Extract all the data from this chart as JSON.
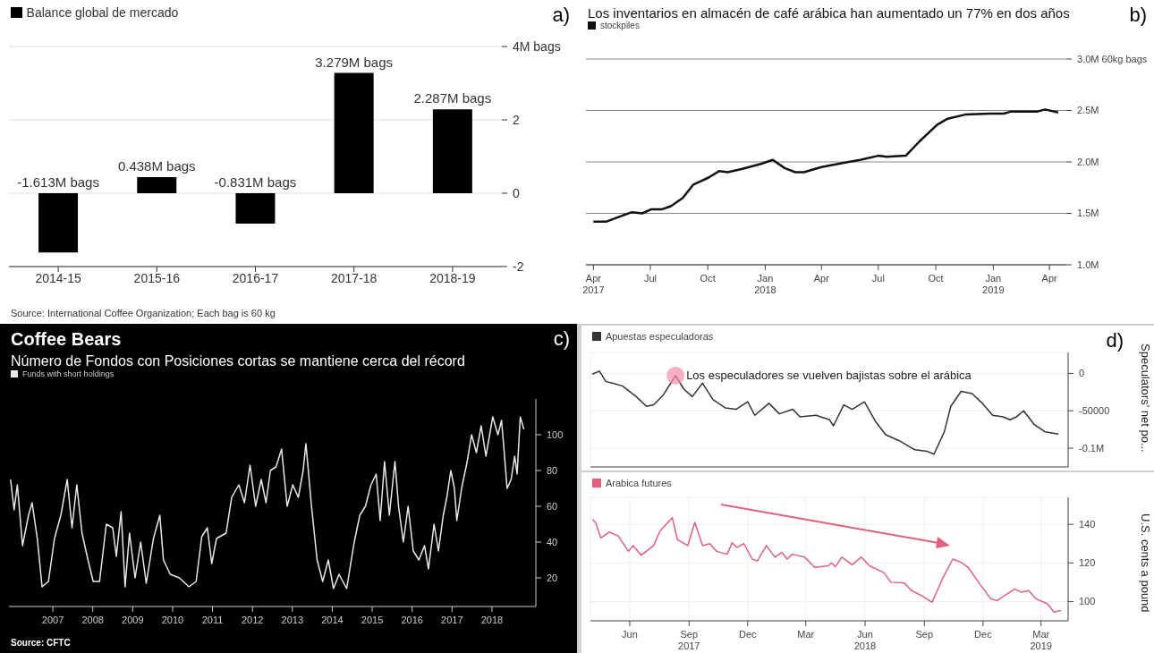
{
  "chart_data": [
    {
      "type": "bar",
      "categories": [
        "2014-15",
        "2015-16",
        "2016-17",
        "2017-18",
        "2018-19"
      ],
      "series": [
        {
          "name": "Balance global de mercado",
          "color": "#000000",
          "values": [
            -1.613,
            0.438,
            -0.831,
            3.279,
            2.287
          ],
          "value_labels": [
            "-1.613M bags",
            "0.438M bags",
            "-0.831M bags",
            "3.279M bags",
            "2.287M bags"
          ]
        }
      ],
      "ylim": [
        -2,
        4
      ],
      "yticks": [
        -2,
        0,
        2,
        {
          "value": 4,
          "label": "4M bags"
        }
      ],
      "grid": "y",
      "legend": "top left",
      "annotations": [
        "a)",
        "Source: International Coffee Organization; Each bag is 60 kg"
      ]
    },
    {
      "type": "line",
      "title": "Los inventarios en almacén de café arábica han aumentado un 77% en dos años",
      "series": [
        {
          "name": "stockpiles",
          "color": "#111111",
          "x": [
            "2017-04-01",
            "2017-04-22",
            "2017-05-18",
            "2017-06-01",
            "2017-06-18",
            "2017-07-03",
            "2017-07-20",
            "2017-08-03",
            "2017-08-22",
            "2017-09-08",
            "2017-09-19",
            "2017-10-03",
            "2017-10-19",
            "2017-11-02",
            "2017-11-24",
            "2017-12-25",
            "2018-01-13",
            "2018-02-01",
            "2018-02-18",
            "2018-03-04",
            "2018-04-01",
            "2018-05-05",
            "2018-06-02",
            "2018-07-01",
            "2018-07-14",
            "2018-08-14",
            "2018-09-05",
            "2018-10-03",
            "2018-10-20",
            "2018-11-17",
            "2018-12-27",
            "2019-01-18",
            "2019-01-30",
            "2019-03-13",
            "2019-03-25",
            "2019-04-15"
          ],
          "values": [
            1.42,
            1.42,
            1.48,
            1.51,
            1.5,
            1.54,
            1.54,
            1.57,
            1.65,
            1.78,
            1.81,
            1.85,
            1.91,
            1.9,
            1.93,
            1.98,
            2.02,
            1.94,
            1.9,
            1.9,
            1.95,
            1.99,
            2.02,
            2.06,
            2.05,
            2.06,
            2.2,
            2.36,
            2.42,
            2.46,
            2.47,
            2.47,
            2.49,
            2.49,
            2.51,
            2.48
          ]
        }
      ],
      "xlim": [
        "2017-03-20",
        "2019-04-28"
      ],
      "xticks": [
        {
          "value": "2017-04-01",
          "label": "Apr 2017"
        },
        {
          "value": "2017-07-01",
          "label": "Jul"
        },
        {
          "value": "2017-10-01",
          "label": "Oct"
        },
        {
          "value": "2018-01-01",
          "label": "Jan 2018"
        },
        {
          "value": "2018-04-01",
          "label": "Apr"
        },
        {
          "value": "2018-07-01",
          "label": "Jul"
        },
        {
          "value": "2018-10-01",
          "label": "Oct"
        },
        {
          "value": "2019-01-01",
          "label": "Jan 2019"
        },
        {
          "value": "2019-04-01",
          "label": "Apr"
        }
      ],
      "ylim": [
        1.0,
        3.0
      ],
      "yticks": [
        {
          "value": 1.0,
          "label": "1.0M"
        },
        {
          "value": 1.5,
          "label": "1.5M"
        },
        {
          "value": 2.0,
          "label": "2.0M"
        },
        {
          "value": 2.5,
          "label": "2.5M"
        },
        {
          "value": 3.0,
          "label": "3.0M 60kg bags"
        }
      ],
      "grid": "y",
      "legend": "top left",
      "annotations": [
        "b)"
      ]
    },
    {
      "type": "line",
      "title": "Coffee Bears",
      "subtitle": "Número de Fondos con Posiciones cortas se mantiene cerca del récord",
      "series": [
        {
          "name": "Funds with short holdings",
          "color": "#e8e8e8",
          "x": [
            2006.44,
            2006.53,
            2006.61,
            2006.74,
            2006.89,
            2006.98,
            2007.11,
            2007.23,
            2007.39,
            2007.54,
            2007.7,
            2007.86,
            2007.98,
            2008.1,
            2008.23,
            2008.38,
            2008.51,
            2008.67,
            2008.84,
            2009.0,
            2009.09,
            2009.21,
            2009.31,
            2009.42,
            2009.56,
            2009.7,
            2009.84,
            2010.02,
            2010.18,
            2010.27,
            2010.44,
            2010.67,
            2010.91,
            2011.09,
            2011.23,
            2011.37,
            2011.48,
            2011.6,
            2011.84,
            2011.98,
            2012.16,
            2012.3,
            2012.44,
            2012.58,
            2012.72,
            2012.84,
            2012.95,
            2013.09,
            2013.23,
            2013.37,
            2013.51,
            2013.65,
            2013.77,
            2013.84,
            2013.98,
            2014.12,
            2014.26,
            2014.4,
            2014.53,
            2014.67,
            2014.86,
            2015.05,
            2015.19,
            2015.33,
            2015.47,
            2015.6,
            2015.7,
            2015.81,
            2015.93,
            2016.07,
            2016.16,
            2016.28,
            2016.4,
            2016.53,
            2016.67,
            2016.81,
            2016.91,
            2017.05,
            2017.16,
            2017.28,
            2017.37,
            2017.47,
            2017.56,
            2017.62,
            2017.74,
            2017.88,
            2017.99,
            2018.11,
            2018.23,
            2018.35,
            2018.52,
            2018.65,
            2018.74,
            2018.79,
            2018.88,
            2018.98,
            2019.07,
            2019.13,
            2019.21,
            2019.3
          ],
          "values": [
            75,
            58,
            72,
            38,
            55,
            62,
            42,
            15,
            18,
            42,
            55,
            75,
            48,
            72,
            45,
            30,
            18,
            18,
            50,
            48,
            32,
            57,
            15,
            45,
            20,
            40,
            17,
            42,
            55,
            30,
            22,
            20,
            15,
            18,
            43,
            48,
            28,
            42,
            45,
            65,
            72,
            62,
            83,
            60,
            75,
            62,
            80,
            82,
            92,
            60,
            72,
            65,
            80,
            95,
            60,
            30,
            18,
            30,
            14,
            22,
            14,
            40,
            55,
            60,
            72,
            78,
            52,
            85,
            55,
            85,
            60,
            40,
            60,
            35,
            30,
            38,
            25,
            50,
            35,
            55,
            65,
            80,
            70,
            52,
            70,
            85,
            100,
            90,
            105,
            88,
            110,
            100,
            108,
            95,
            70,
            75,
            88,
            78,
            110,
            103
          ]
        }
      ],
      "xlim": [
        2006.4,
        2019.6
      ],
      "xticks": [
        {
          "value": 2007.5,
          "label": "2007"
        },
        {
          "value": 2008.5,
          "label": "2008"
        },
        {
          "value": 2009.5,
          "label": "2009"
        },
        {
          "value": 2010.5,
          "label": "2010"
        },
        {
          "value": 2011.5,
          "label": "2011"
        },
        {
          "value": 2012.5,
          "label": "2012"
        },
        {
          "value": 2013.5,
          "label": "2013"
        },
        {
          "value": 2014.5,
          "label": "2014"
        },
        {
          "value": 2015.5,
          "label": "2015"
        },
        {
          "value": 2016.5,
          "label": "2016"
        },
        {
          "value": 2017.5,
          "label": "2017"
        },
        {
          "value": 2018.5,
          "label": "2018"
        }
      ],
      "ylim": [
        4,
        120
      ],
      "yticks": [
        20,
        40,
        60,
        80,
        100
      ],
      "legend": "top left",
      "annotations": [
        "c)",
        "Source: CFTC"
      ]
    },
    {
      "type": "line",
      "ylabel": "Speculators' net po...",
      "series": [
        {
          "name": "Apuestas especuladoras",
          "color": "#333333",
          "x": [
            "2017-04-04",
            "2017-04-15",
            "2017-04-25",
            "2017-05-05",
            "2017-05-21",
            "2017-06-11",
            "2017-06-27",
            "2017-07-08",
            "2017-07-23",
            "2017-08-11",
            "2017-08-24",
            "2017-09-06",
            "2017-09-22",
            "2017-10-08",
            "2017-10-27",
            "2017-11-13",
            "2017-12-01",
            "2017-12-12",
            "2018-01-03",
            "2018-01-19",
            "2018-02-09",
            "2018-02-20",
            "2018-03-17",
            "2018-04-07",
            "2018-04-13",
            "2018-04-29",
            "2018-05-12",
            "2018-05-31",
            "2018-06-17",
            "2018-07-03",
            "2018-07-24",
            "2018-08-17",
            "2018-09-05",
            "2018-09-16",
            "2018-10-02",
            "2018-10-12",
            "2018-10-28",
            "2018-11-14",
            "2018-11-30",
            "2018-12-16",
            "2019-01-01",
            "2019-01-12",
            "2019-01-22",
            "2019-02-02",
            "2019-02-18",
            "2019-03-07",
            "2019-03-28"
          ],
          "values": [
            -1000,
            3000,
            -11000,
            -13000,
            -17000,
            -31000,
            -44000,
            -42000,
            -29000,
            -3000,
            -21000,
            -31000,
            -13000,
            -35000,
            -46000,
            -48000,
            -38000,
            -56000,
            -40000,
            -54000,
            -48000,
            -58000,
            -56000,
            -62000,
            -70000,
            -42000,
            -48000,
            -38000,
            -64000,
            -82000,
            -90000,
            -102000,
            -104000,
            -108000,
            -78000,
            -44000,
            -24000,
            -27000,
            -40000,
            -56000,
            -58000,
            -62000,
            -58000,
            -50000,
            -68000,
            -78000,
            -81000
          ]
        }
      ],
      "xlim": [
        "2017-04-01",
        "2019-04-12"
      ],
      "xticks": [
        {
          "value": "2017-06-01",
          "label": null
        },
        {
          "value": "2017-09-01",
          "label": null
        },
        {
          "value": "2017-12-01",
          "label": null
        },
        {
          "value": "2018-03-01",
          "label": null
        },
        {
          "value": "2018-06-01",
          "label": null
        },
        {
          "value": "2018-09-01",
          "label": null
        },
        {
          "value": "2018-12-01",
          "label": null
        },
        {
          "value": "2019-03-01",
          "label": null
        }
      ],
      "ylim": [
        -125000,
        28000
      ],
      "yticks": [
        {
          "value": -100000,
          "label": "-0.1M"
        },
        -50000,
        0
      ],
      "grid": true,
      "legend": "top left",
      "tick_labels": "y",
      "annotations": [
        "d)",
        {
          "text": "Los especuladores se vuelven bajistas sobre el arábica",
          "x": "2017-08-11",
          "y": -3000
        }
      ]
    },
    {
      "type": "line",
      "ylabel": "U.S. cents a pound",
      "series": [
        {
          "name": "Arabica futures",
          "color": "#e0607e",
          "x": [
            "2017-04-04",
            "2017-04-09",
            "2017-04-17",
            "2017-04-30",
            "2017-05-14",
            "2017-05-30",
            "2017-06-06",
            "2017-06-19",
            "2017-07-08",
            "2017-07-18",
            "2017-08-06",
            "2017-08-14",
            "2017-08-30",
            "2017-09-10",
            "2017-09-22",
            "2017-10-03",
            "2017-10-14",
            "2017-10-30",
            "2017-11-07",
            "2017-11-14",
            "2017-11-25",
            "2017-12-08",
            "2017-12-16",
            "2017-12-30",
            "2018-01-12",
            "2018-01-23",
            "2018-01-31",
            "2018-02-08",
            "2018-02-27",
            "2018-03-15",
            "2018-04-05",
            "2018-04-10",
            "2018-04-16",
            "2018-04-26",
            "2018-05-12",
            "2018-05-26",
            "2018-06-08",
            "2018-06-30",
            "2018-07-11",
            "2018-08-01",
            "2018-08-12",
            "2018-08-28",
            "2018-09-13",
            "2018-09-29",
            "2018-10-15",
            "2018-10-28",
            "2018-11-08",
            "2018-11-24",
            "2018-12-13",
            "2018-12-23",
            "2019-01-19",
            "2019-01-30",
            "2019-02-10",
            "2019-02-21",
            "2019-03-11",
            "2019-03-21",
            "2019-04-01"
          ],
          "values": [
            142.6,
            141,
            133,
            136,
            134,
            126,
            129,
            124,
            129,
            136.6,
            143.4,
            132,
            129,
            141,
            129,
            130,
            126,
            124.5,
            130.5,
            128,
            130,
            122,
            121,
            129,
            123,
            125.4,
            122,
            124.5,
            123,
            117.7,
            118.5,
            120,
            118,
            123,
            119,
            123,
            118.5,
            115,
            110,
            109.6,
            105.7,
            103,
            99.6,
            111.7,
            122,
            120.3,
            117.7,
            110,
            101.4,
            100.5,
            106.5,
            104.8,
            105.7,
            101.4,
            98.8,
            94.5,
            95.4
          ]
        }
      ],
      "xlim": [
        "2017-04-01",
        "2019-04-12"
      ],
      "xticks": [
        {
          "value": "2017-06-01",
          "label": "Jun"
        },
        {
          "value": "2017-09-01",
          "label": "Sep 2017"
        },
        {
          "value": "2017-12-01",
          "label": "Dec"
        },
        {
          "value": "2018-03-01",
          "label": "Mar"
        },
        {
          "value": "2018-06-01",
          "label": "Jun 2018"
        },
        {
          "value": "2018-09-01",
          "label": "Sep"
        },
        {
          "value": "2018-12-01",
          "label": "Dec"
        },
        {
          "value": "2019-03-01",
          "label": "Mar 2019"
        }
      ],
      "ylim": [
        90,
        154
      ],
      "yticks": [
        100,
        120,
        140
      ],
      "grid": true,
      "legend": "top left"
    }
  ]
}
